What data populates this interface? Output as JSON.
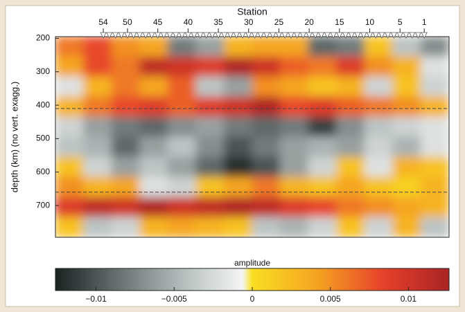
{
  "chart_data": {
    "type": "heatmap",
    "x_label": "Station",
    "y_label": "depth (km) (no vert. exagg.)",
    "colorbar_label": "amplitude",
    "xlim": [
      61.9,
      -3.1
    ],
    "xticks": [
      54,
      50,
      45,
      40,
      35,
      30,
      25,
      20,
      15,
      10,
      5,
      1
    ],
    "ylim": [
      795,
      195
    ],
    "yticks": [
      200,
      300,
      400,
      500,
      600,
      700
    ],
    "reference_depths": [
      410,
      660
    ],
    "clim": [
      -0.0126,
      0.0126
    ],
    "cticks": [
      {
        "value": -0.01,
        "label": "−0.01"
      },
      {
        "value": -0.005,
        "label": "−0.005"
      },
      0,
      0.005,
      0.01
    ],
    "colormap_negative": [
      "#ffffff",
      "#b9c1c1",
      "#6b7575",
      "#1a2222"
    ],
    "colormap_positive": [
      "#f9de22",
      "#f5a322",
      "#e6402a",
      "#a82424"
    ],
    "z": [
      [
        0.006,
        0.008,
        0.005,
        0.004,
        -0.008,
        -0.006,
        0.003,
        0.004,
        0.004,
        -0.009,
        -0.008,
        0.002,
        -0.004,
        -0.007
      ],
      [
        0.004,
        0.008,
        0.006,
        0.011,
        0.01,
        0.009,
        0.012,
        0.01,
        0.007,
        0.006,
        0.009,
        0.005,
        0.003,
        -0.002
      ],
      [
        -0.002,
        0.003,
        0.006,
        0.004,
        0.007,
        -0.004,
        -0.006,
        0.005,
        0.004,
        0.002,
        0.003,
        -0.003,
        0.002,
        -0.003
      ],
      [
        0.003,
        0.006,
        0.008,
        0.009,
        0.007,
        0.009,
        0.01,
        0.012,
        0.008,
        0.009,
        0.007,
        0.006,
        0.005,
        0.003
      ],
      [
        -0.003,
        -0.006,
        -0.008,
        -0.009,
        -0.007,
        -0.006,
        -0.008,
        -0.009,
        -0.008,
        -0.011,
        -0.007,
        -0.004,
        -0.003,
        -0.002
      ],
      [
        -0.004,
        -0.005,
        -0.009,
        -0.006,
        -0.004,
        -0.007,
        -0.01,
        -0.008,
        -0.006,
        -0.005,
        -0.006,
        -0.003,
        -0.005,
        -0.002
      ],
      [
        0.002,
        -0.003,
        -0.006,
        -0.004,
        -0.006,
        -0.009,
        -0.012,
        -0.01,
        -0.006,
        -0.003,
        0.002,
        -0.002,
        0.003,
        0.002
      ],
      [
        0.005,
        0.003,
        0.004,
        -0.002,
        -0.003,
        0.002,
        0.004,
        0.006,
        0.003,
        0.002,
        0.004,
        0.002,
        0.001,
        0.003
      ],
      [
        0.009,
        0.011,
        0.01,
        0.012,
        0.01,
        0.011,
        0.012,
        0.011,
        0.009,
        0.008,
        0.006,
        0.005,
        0.004,
        0.003
      ],
      [
        0.002,
        -0.004,
        -0.003,
        0.003,
        0.004,
        0.003,
        0.002,
        -0.004,
        -0.005,
        -0.003,
        0.002,
        -0.003,
        0.003,
        -0.004
      ]
    ]
  }
}
